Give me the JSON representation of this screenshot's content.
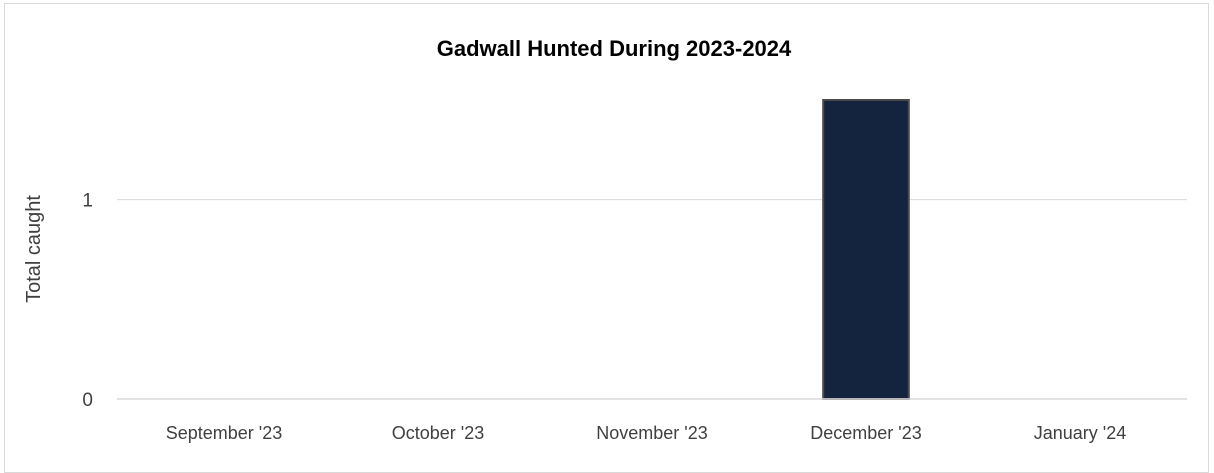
{
  "chart_data": {
    "type": "bar",
    "title": "Gadwall Hunted During 2023-2024",
    "xlabel": "",
    "ylabel": "Total caught",
    "categories": [
      "September '23",
      "October '23",
      "November '23",
      "December '23",
      "January '24"
    ],
    "values": [
      0,
      0,
      0,
      1.5,
      0
    ],
    "ylim": [
      0,
      1.5
    ],
    "yticks": [
      "0",
      "1"
    ],
    "grid": true,
    "legend": "none",
    "bar_color": "#14243f",
    "bar_edge_color": "#4a4a4a",
    "grid_color": "#d9d9d9",
    "text_color": "#404040",
    "title_color": "#000000"
  }
}
